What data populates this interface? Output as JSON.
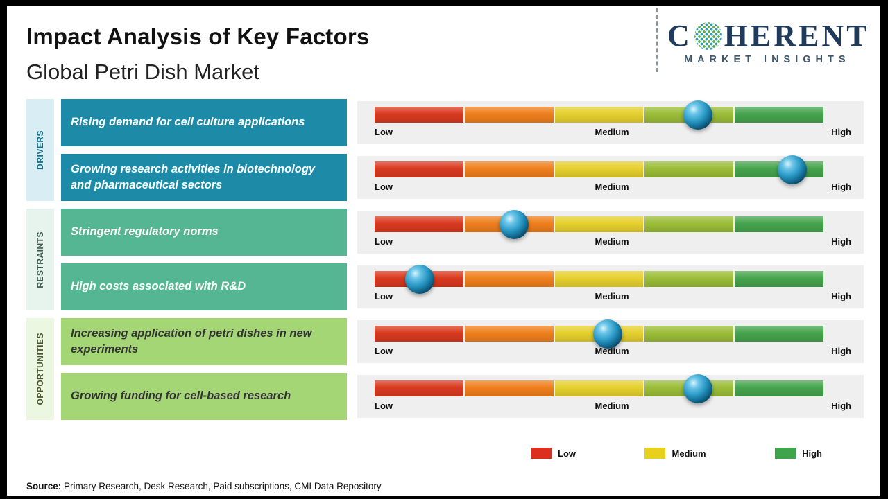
{
  "page": {
    "title": "Impact Analysis of Key Factors",
    "subtitle": "Global Petri Dish Market",
    "source_label": "Source:",
    "source_text": " Primary Research, Desk Research, Paid subscriptions, CMI Data Repository"
  },
  "logo": {
    "brand_prefix": "C",
    "brand_suffix": "HERENT",
    "tagline": "MARKET INSIGHTS"
  },
  "chart_data": {
    "type": "bar",
    "title": "Impact Analysis of Key Factors",
    "subtitle": "Global Petri Dish Market",
    "axis_labels": [
      "Low",
      "Medium",
      "High"
    ],
    "scale_range_pct": [
      0,
      100
    ],
    "segment_colors": [
      "#d93a20",
      "#ef7f1d",
      "#e6d02e",
      "#9bbd38",
      "#46a44d"
    ],
    "groups": [
      {
        "category": "DRIVERS",
        "box_color": "#1d8aa8",
        "box_text_color": "#ffffff",
        "strip_color": "#d9edf4",
        "strip_text_color": "#0f6f8e",
        "factors": [
          {
            "label": "Rising demand for cell culture applications",
            "impact_pct": 72,
            "impact": "Medium-High"
          },
          {
            "label": "Growing research activities in biotechnology and pharmaceutical sectors",
            "impact_pct": 93,
            "impact": "High"
          }
        ]
      },
      {
        "category": "RESTRAINTS",
        "box_color": "#54b693",
        "box_text_color": "#ffffff",
        "strip_color": "#e7f4ee",
        "strip_text_color": "#3e5a4e",
        "factors": [
          {
            "label": "Stringent regulatory norms",
            "impact_pct": 31,
            "impact": "Low-Medium"
          },
          {
            "label": "High costs associated with R&D",
            "impact_pct": 10,
            "impact": "Low"
          }
        ]
      },
      {
        "category": "OPPORTUNITIES",
        "box_color": "#a4d675",
        "box_text_color": "#333333",
        "strip_color": "#ebf7e1",
        "strip_text_color": "#46562e",
        "factors": [
          {
            "label": "Increasing application of petri dishes in new experiments",
            "impact_pct": 52,
            "impact": "Medium"
          },
          {
            "label": "Growing funding for cell-based research",
            "impact_pct": 72,
            "impact": "Medium-High"
          }
        ]
      }
    ],
    "legend": [
      {
        "label": "Low",
        "color": "#dd2f1f"
      },
      {
        "label": "Medium",
        "color": "#e8d11c"
      },
      {
        "label": "High",
        "color": "#3fa44a"
      }
    ]
  }
}
